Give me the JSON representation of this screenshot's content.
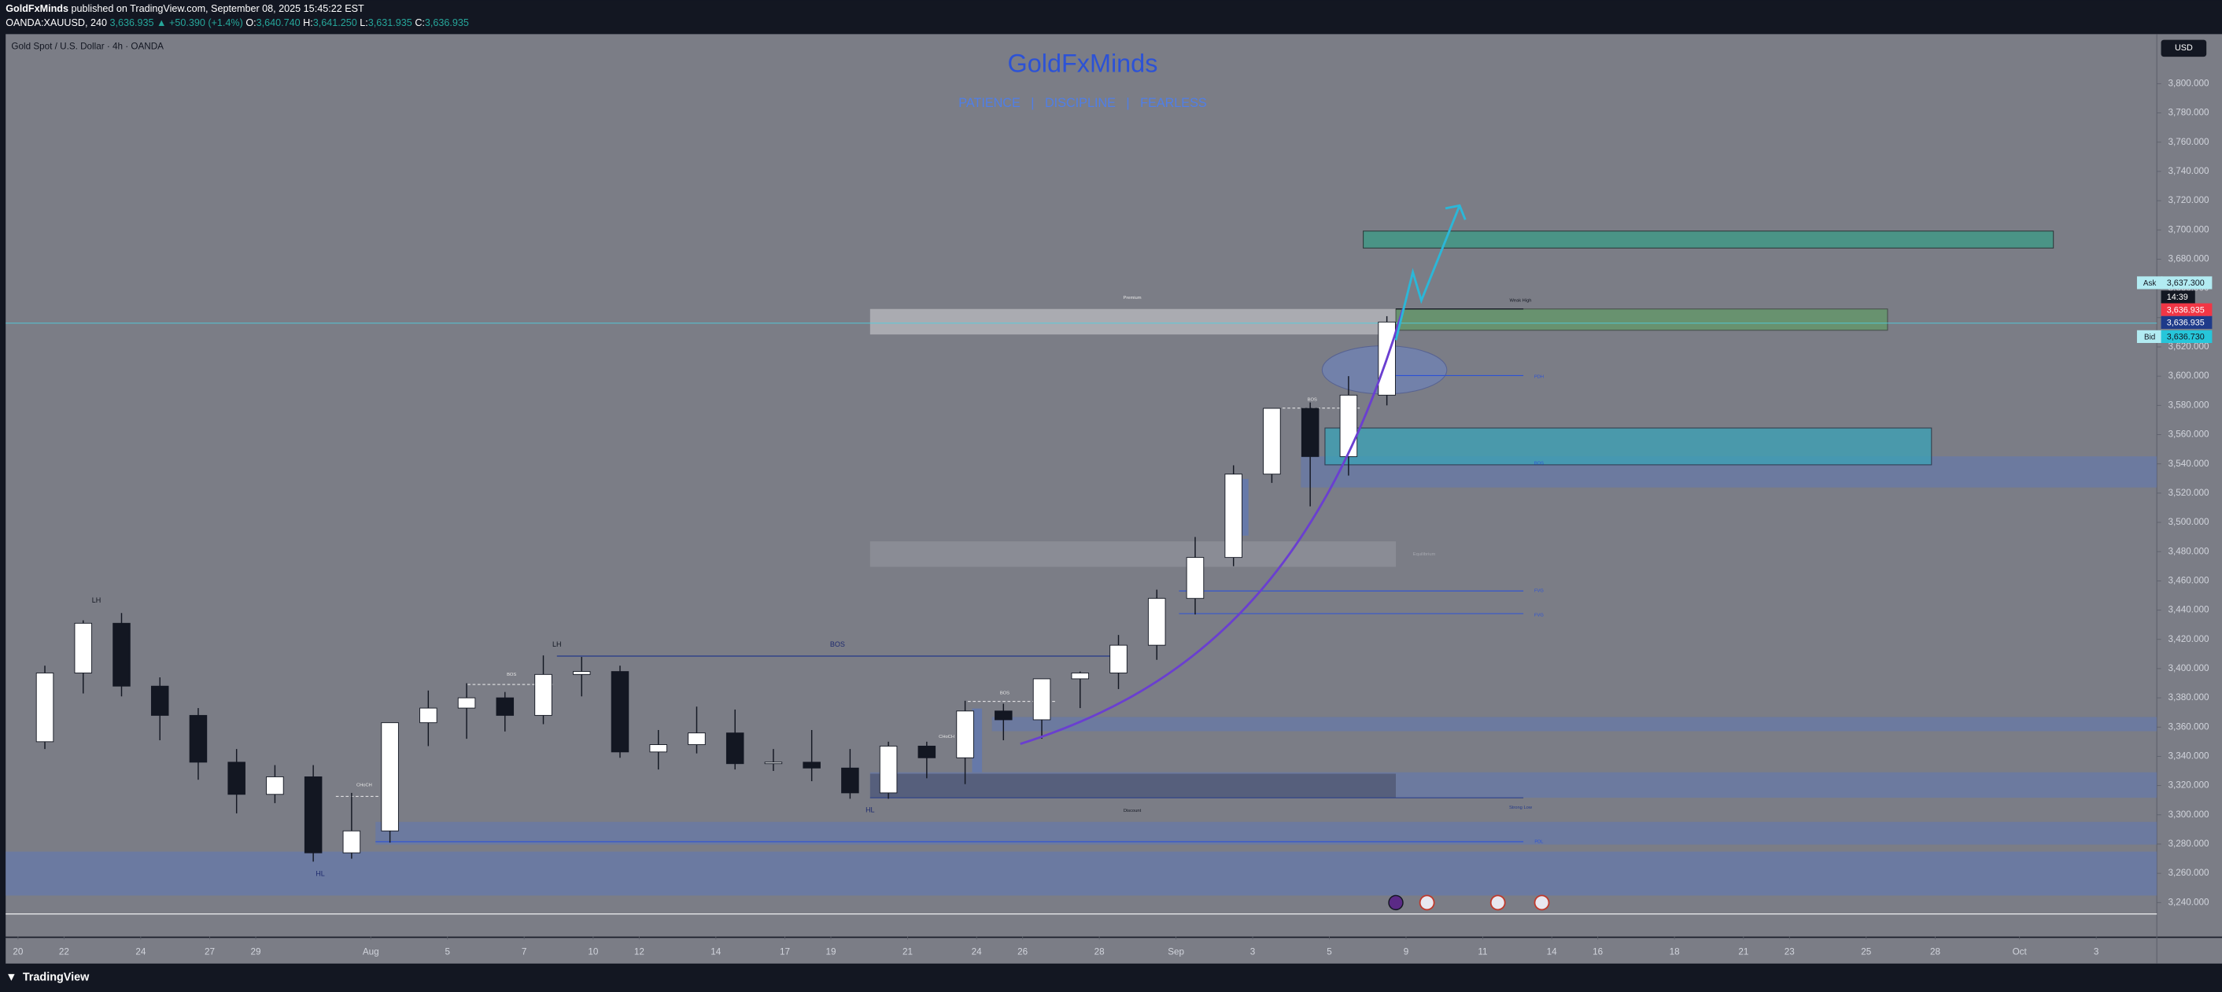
{
  "header": {
    "publisher": "GoldFxMinds",
    "published": "published on TradingView.com, September 08, 2025 15:45:22 EST",
    "symbol": "OANDA:XAUUSD, 240",
    "price": "3,636.935",
    "change": "▲ +50.390 (+1.4%)",
    "ohlc": [
      {
        "label": "O:",
        "value": "3,640.740"
      },
      {
        "label": "H:",
        "value": "3,641.250"
      },
      {
        "label": "L:",
        "value": "3,631.935"
      },
      {
        "label": "C:",
        "value": "3,636.935"
      }
    ]
  },
  "chart_title": "Gold Spot / U.S. Dollar · 4h · OANDA",
  "currency": "USD",
  "brand": "GoldFxMinds",
  "motto": "PATIENCE   |   DISCIPLINE   |   FEARLESS",
  "price_scale": {
    "ask_label": "Ask",
    "ask": "3,637.300",
    "countdown": "14:39",
    "last": "3,636.935",
    "mark": "3,636.935",
    "bid_label": "Bid",
    "bid": "3,636.730"
  },
  "annotations": [
    "Premium",
    "Discount",
    "LH",
    "LH",
    "HL",
    "HL",
    "BOS",
    "BOS",
    "BOS",
    "CHoCH",
    "CHoCH",
    "BOS",
    "Weak High",
    "Strong Low",
    "PDH",
    "FVG",
    "FVG",
    "PDL",
    "BOS",
    "Equilibrium"
  ],
  "footer": "TradingView",
  "chart_data": {
    "type": "candlestick",
    "categories": [
      null,
      null,
      null,
      null,
      null,
      null,
      null,
      null,
      null,
      null,
      null,
      null,
      null,
      null,
      null,
      null,
      null,
      null,
      null,
      null,
      null,
      null,
      null,
      null,
      null,
      null,
      null,
      null,
      null,
      null,
      null,
      null,
      null,
      null,
      null,
      null
    ],
    "open": [
      3350,
      3397,
      3431,
      3388,
      3368,
      3336,
      3314,
      3326,
      3274,
      3289,
      3363,
      3373,
      3380,
      3368,
      3396,
      3398,
      3343,
      3348,
      3356,
      3335,
      3336,
      3332,
      3315,
      3347,
      3339,
      3371,
      3365,
      3393,
      3397,
      3416,
      3448,
      3476,
      3533,
      3578,
      3545,
      3587
    ],
    "high": [
      3402,
      3433,
      3438,
      3394,
      3373,
      3345,
      3334,
      3334,
      3315,
      3363,
      3385,
      3390,
      3384,
      3409,
      3408,
      3402,
      3358,
      3374,
      3372,
      3345,
      3358,
      3345,
      3350,
      3350,
      3378,
      3376,
      3393,
      3398,
      3423,
      3454,
      3490,
      3539,
      3578,
      3582,
      3600,
      3641
    ],
    "low": [
      3345,
      3383,
      3381,
      3351,
      3324,
      3301,
      3308,
      3268,
      3270,
      3281,
      3347,
      3352,
      3357,
      3362,
      3381,
      3339,
      3331,
      3342,
      3331,
      3330,
      3323,
      3311,
      3311,
      3325,
      3321,
      3351,
      3352,
      3373,
      3386,
      3406,
      3437,
      3470,
      3527,
      3511,
      3532,
      3580
    ],
    "close": [
      3397,
      3431,
      3388,
      3368,
      3336,
      3314,
      3326,
      3274,
      3289,
      3363,
      3373,
      3380,
      3368,
      3396,
      3398,
      3343,
      3348,
      3356,
      3335,
      3336,
      3332,
      3315,
      3347,
      3339,
      3371,
      3365,
      3393,
      3397,
      3416,
      3448,
      3476,
      3533,
      3578,
      3545,
      3587,
      3637
    ],
    "up_color": "#ffffff",
    "down_color": "#131722",
    "ylim": [
      3216.7,
      3833.9
    ],
    "yticks": [
      {
        "value": 3240,
        "label": "3,240.000"
      },
      {
        "value": 3260,
        "label": "3,260.000"
      },
      {
        "value": 3280,
        "label": "3,280.000"
      },
      {
        "value": 3300,
        "label": "3,300.000"
      },
      {
        "value": 3320,
        "label": "3,320.000"
      },
      {
        "value": 3340,
        "label": "3,340.000"
      },
      {
        "value": 3360,
        "label": "3,360.000"
      },
      {
        "value": 3380,
        "label": "3,380.000"
      },
      {
        "value": 3400,
        "label": "3,400.000"
      },
      {
        "value": 3420,
        "label": "3,420.000"
      },
      {
        "value": 3440,
        "label": "3,440.000"
      },
      {
        "value": 3460,
        "label": "3,460.000"
      },
      {
        "value": 3480,
        "label": "3,480.000"
      },
      {
        "value": 3500,
        "label": "3,500.000"
      },
      {
        "value": 3520,
        "label": "3,520.000"
      },
      {
        "value": 3540,
        "label": "3,540.000"
      },
      {
        "value": 3560,
        "label": "3,560.000"
      },
      {
        "value": 3580,
        "label": "3,580.000"
      },
      {
        "value": 3600,
        "label": "3,600.000"
      },
      {
        "value": 3620,
        "label": "3,620.000"
      },
      {
        "value": 3640,
        "label": "3,640.000"
      },
      {
        "value": 3660,
        "label": "3,660.000"
      },
      {
        "value": 3680,
        "label": "3,680.000"
      },
      {
        "value": 3700,
        "label": "3,700.000"
      },
      {
        "value": 3720,
        "label": "3,720.000"
      },
      {
        "value": 3740,
        "label": "3,740.000"
      },
      {
        "value": 3760,
        "label": "3,760.000"
      },
      {
        "value": 3780,
        "label": "3,780.000"
      },
      {
        "value": 3800,
        "label": "3,800.000"
      }
    ],
    "xlim": [
      -0.67,
      55.58
    ],
    "xticks": [
      {
        "value": -0.2,
        "label": "20"
      },
      {
        "value": 1,
        "label": "22"
      },
      {
        "value": 3,
        "label": "24"
      },
      {
        "value": 4.8,
        "label": "27"
      },
      {
        "value": 6,
        "label": "29"
      },
      {
        "value": 9,
        "label": "Aug"
      },
      {
        "value": 11,
        "label": "5"
      },
      {
        "value": 13,
        "label": "7"
      },
      {
        "value": 14.8,
        "label": "10"
      },
      {
        "value": 16,
        "label": "12"
      },
      {
        "value": 18,
        "label": "14"
      },
      {
        "value": 19.8,
        "label": "17"
      },
      {
        "value": 21,
        "label": "19"
      },
      {
        "value": 23,
        "label": "21"
      },
      {
        "value": 24.8,
        "label": "24"
      },
      {
        "value": 26,
        "label": "26"
      },
      {
        "value": 28,
        "label": "28"
      },
      {
        "value": 30,
        "label": "Sep"
      },
      {
        "value": 32,
        "label": "3"
      },
      {
        "value": 34,
        "label": "5"
      },
      {
        "value": 36,
        "label": "9"
      },
      {
        "value": 38,
        "label": "11"
      },
      {
        "value": 39.8,
        "label": "14"
      },
      {
        "value": 41,
        "label": "16"
      },
      {
        "value": 43,
        "label": "18"
      },
      {
        "value": 44.8,
        "label": "21"
      },
      {
        "value": 46,
        "label": "23"
      },
      {
        "value": 48,
        "label": "25"
      },
      {
        "value": 49.8,
        "label": "28"
      },
      {
        "value": 52,
        "label": "Oct"
      },
      {
        "value": 54,
        "label": "3"
      }
    ]
  }
}
